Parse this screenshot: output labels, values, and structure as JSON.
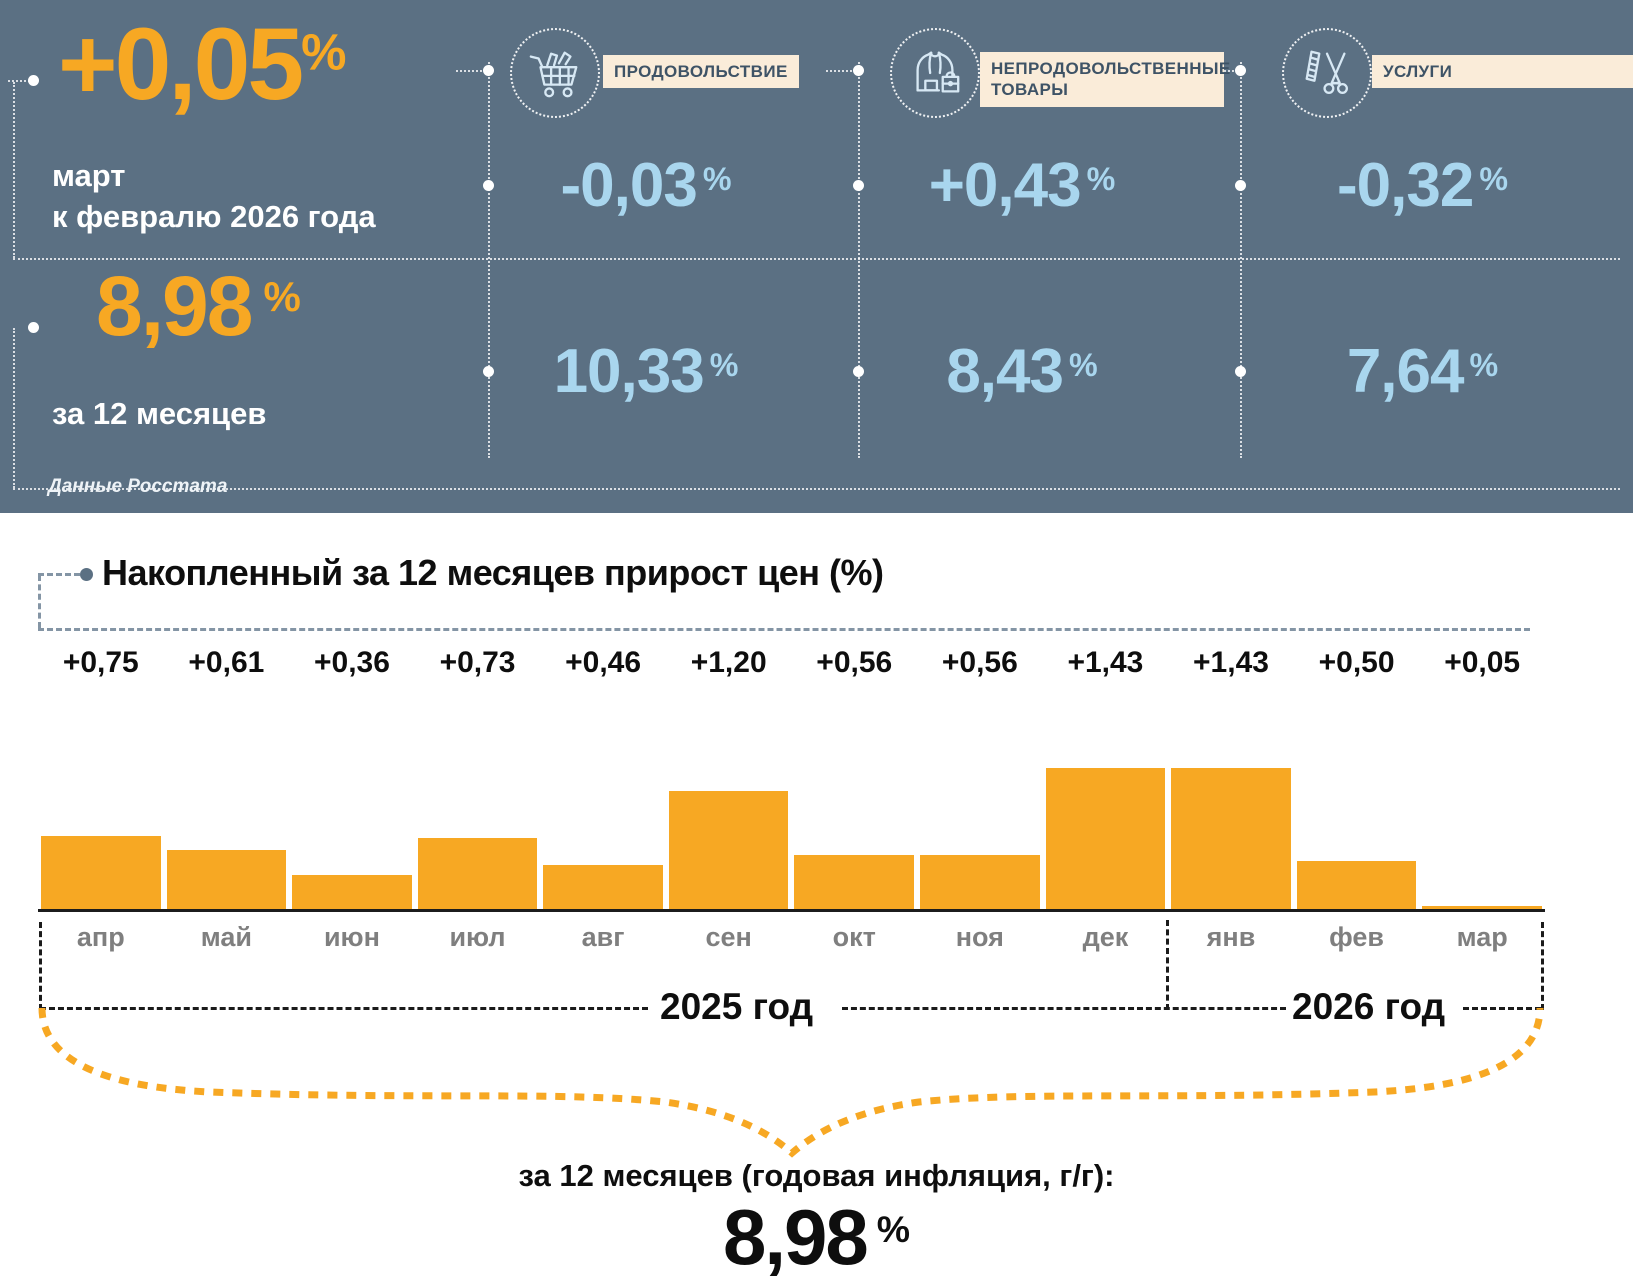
{
  "colors": {
    "background_dark": "#5B7083",
    "accent_orange": "#F7A823",
    "value_blue": "#A9D6EE",
    "chip_cream": "#FAECD9"
  },
  "header": {
    "percent_sign": "%",
    "main": {
      "value": "+0,05",
      "period_line1": "март",
      "period_line2": "к февралю 2026 года"
    },
    "annual": {
      "value": "8,98",
      "label": "за 12 месяцев"
    },
    "source": "Данные Росстата",
    "categories": [
      {
        "icon": "shopping-cart-icon",
        "label": "ПРОДОВОЛЬСТВИЕ",
        "monthly": "-0,03",
        "annual": "10,33"
      },
      {
        "icon": "hoodie-bag-icon",
        "label": "НЕПРОДОВОЛЬСТВЕННЫЕ ТОВАРЫ",
        "monthly": "+0,43",
        "annual": "8,43"
      },
      {
        "icon": "scissors-comb-icon",
        "label": "УСЛУГИ",
        "monthly": "-0,32",
        "annual": "7,64"
      }
    ]
  },
  "chart": {
    "title": "Накопленный за 12 месяцев прирост цен (%)"
  },
  "chart_data": {
    "type": "bar",
    "title": "Накопленный за 12 месяцев прирост цен (%)",
    "categories": [
      "апр",
      "май",
      "июн",
      "июл",
      "авг",
      "сен",
      "окт",
      "ноя",
      "дек",
      "янв",
      "фев",
      "мар"
    ],
    "values": [
      0.75,
      0.61,
      0.36,
      0.73,
      0.46,
      1.2,
      0.56,
      0.56,
      1.43,
      1.43,
      0.5,
      0.05
    ],
    "value_labels": [
      "+0,75",
      "+0,61",
      "+0,36",
      "+0,73",
      "+0,46",
      "+1,20",
      "+0,56",
      "+0,56",
      "+1,43",
      "+1,43",
      "+0,50",
      "+0,05"
    ],
    "bar_color": "#F7A823",
    "ylim": [
      0,
      1.45
    ],
    "grid": false,
    "years": [
      {
        "label": "2025 год",
        "months": [
          "апр",
          "май",
          "июн",
          "июл",
          "авг",
          "сен",
          "окт",
          "ноя",
          "дек"
        ]
      },
      {
        "label": "2026 год",
        "months": [
          "янв",
          "фев",
          "мар"
        ]
      }
    ]
  },
  "footer": {
    "caption": "за 12 месяцев (годовая инфляция, г/г):",
    "value": "8,98",
    "percent": "%"
  }
}
